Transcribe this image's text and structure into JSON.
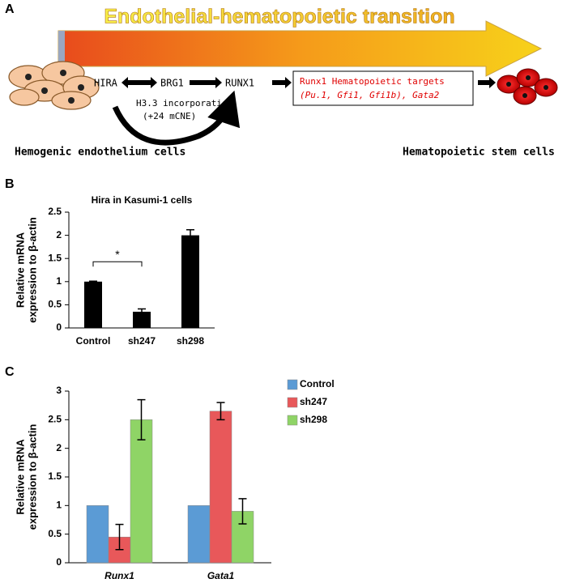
{
  "panel_a": {
    "label": "A",
    "banner": "Endothelial-hematopoietic transition",
    "nodes": [
      "HIRA",
      "BRG1",
      "RUNX1"
    ],
    "loop_label": [
      "H3.3 incorporation",
      "(+24 mCNE)"
    ],
    "targets": [
      "Runx1 Hematopoietic targets",
      "(Pu.1, Gfi1, Gfi1b), Gata2"
    ],
    "start_cells": "Hemogenic endothelium cells",
    "end_cells": "Hematopoietic stem cells"
  },
  "chart_data": [
    {
      "panel": "B",
      "type": "bar",
      "title": "Hira in Kasumi-1 cells",
      "ylabel": [
        "Relative mRNA",
        "expression to β-actin"
      ],
      "categories": [
        "Control",
        "sh247",
        "sh298"
      ],
      "values": [
        1,
        0.35,
        2
      ],
      "errors": [
        0.01,
        0.06,
        0.12
      ],
      "color": "#000000",
      "ylim": [
        0,
        2.5
      ],
      "yticks": [
        0,
        0.5,
        1,
        1.5,
        2,
        2.5
      ],
      "annotation": "*"
    },
    {
      "panel": "C",
      "type": "bar",
      "ylabel": [
        "Relative mRNA",
        "expression to β-actin"
      ],
      "categories": [
        "Runx1",
        "Gata1"
      ],
      "series": [
        {
          "name": "Control",
          "color": "#5b9bd5",
          "values": [
            1,
            1
          ],
          "errors": [
            0,
            0
          ]
        },
        {
          "name": "sh247",
          "color": "#e8585a",
          "values": [
            0.45,
            2.65
          ],
          "errors": [
            0.22,
            0.15
          ]
        },
        {
          "name": "sh298",
          "color": "#8fd466",
          "values": [
            2.5,
            0.9
          ],
          "errors": [
            0.35,
            0.22
          ]
        }
      ],
      "ylim": [
        0,
        3
      ],
      "yticks": [
        0,
        0.5,
        1,
        1.5,
        2,
        2.5,
        3
      ],
      "legend": "upper right"
    }
  ]
}
